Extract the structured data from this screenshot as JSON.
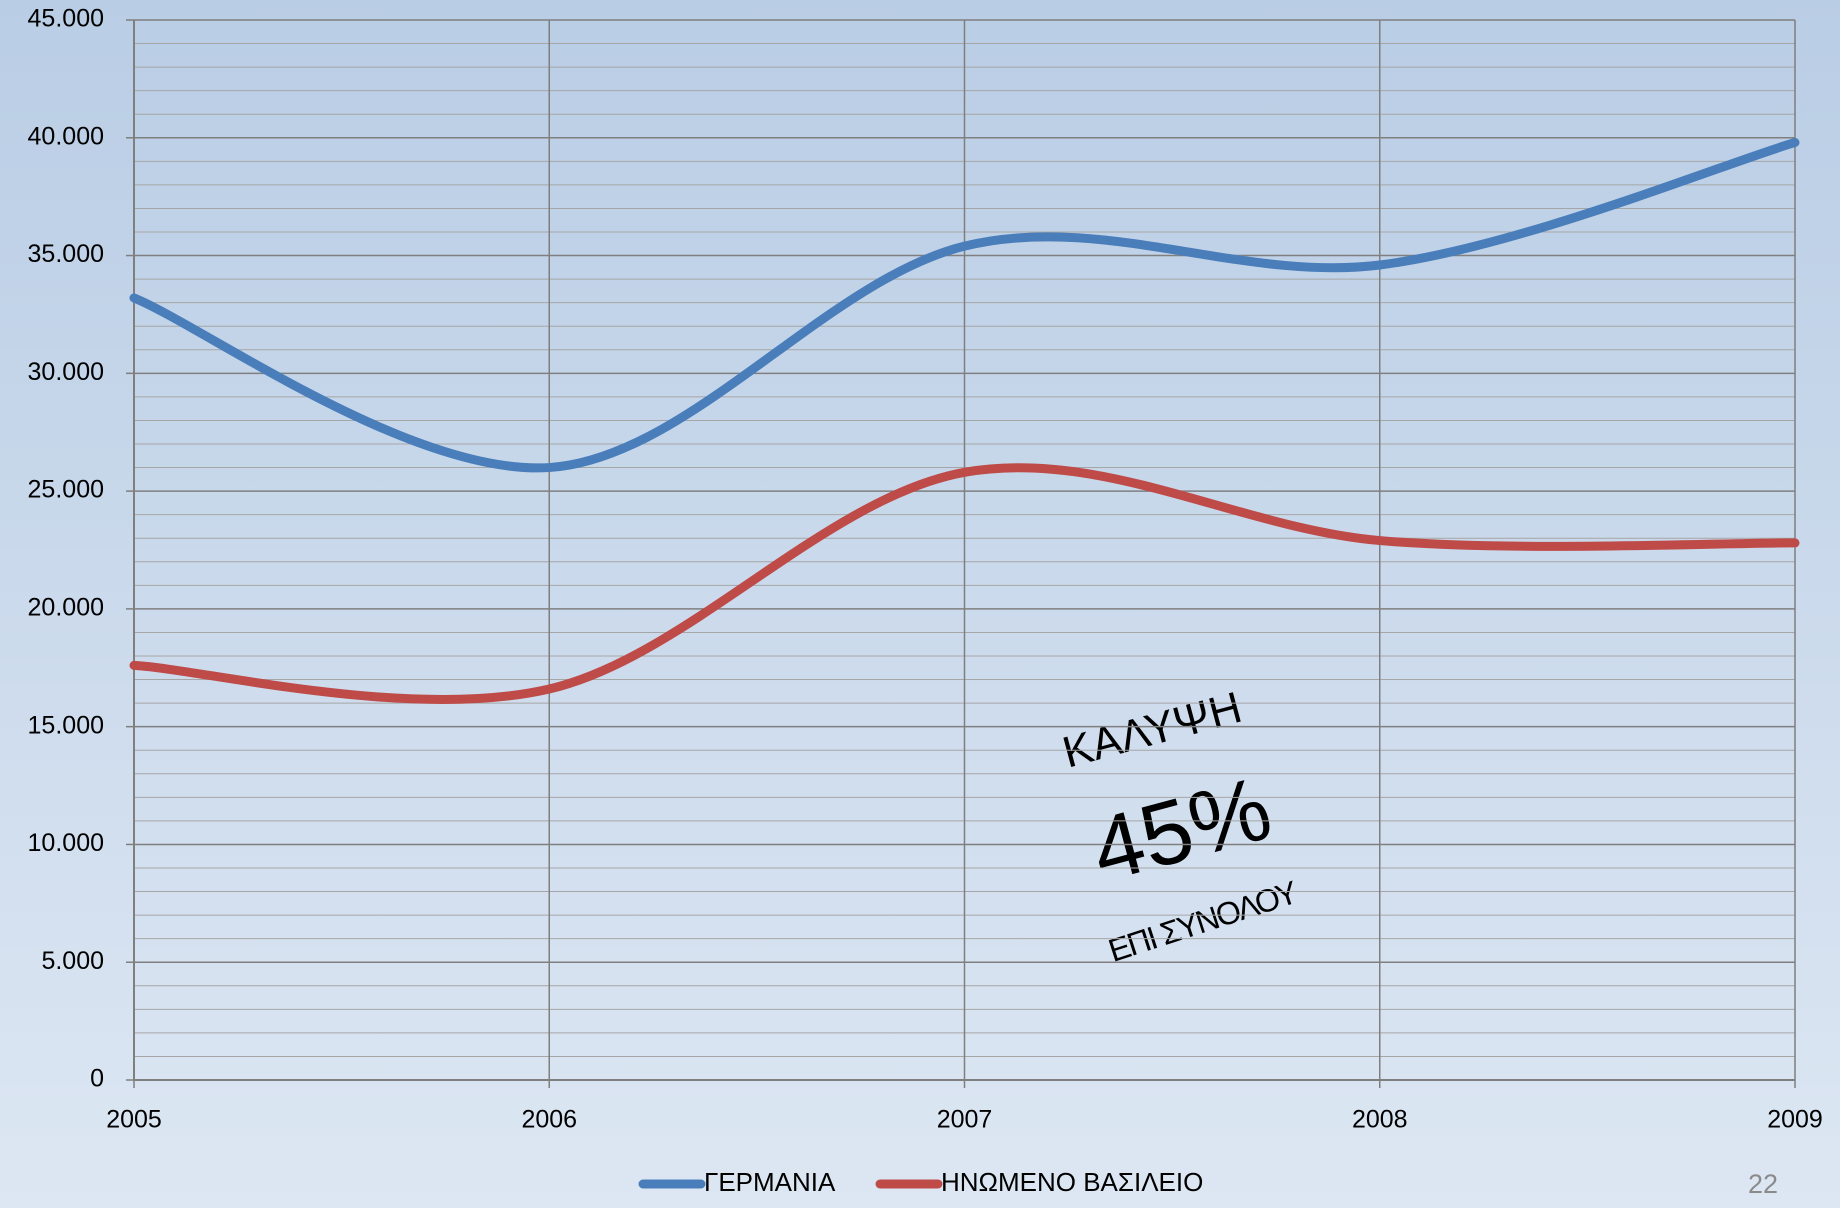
{
  "chart_data": {
    "type": "line",
    "x": [
      2005,
      2006,
      2007,
      2008,
      2009
    ],
    "xlim": [
      2005,
      2009
    ],
    "xticks": [
      2005,
      2006,
      2007,
      2008,
      2009
    ],
    "ylim": [
      0,
      45000
    ],
    "yticks": [
      0,
      {
        "value": 5000,
        "label": "5.000"
      },
      {
        "value": 10000,
        "label": "10.000"
      },
      {
        "value": 15000,
        "label": "15.000"
      },
      {
        "value": 20000,
        "label": "20.000"
      },
      {
        "value": 25000,
        "label": "25.000"
      },
      {
        "value": 30000,
        "label": "30.000"
      },
      {
        "value": 35000,
        "label": "35.000"
      },
      {
        "value": 40000,
        "label": "40.000"
      },
      {
        "value": 45000,
        "label": "45.000"
      }
    ],
    "grid": true,
    "smooth": true,
    "legend": "bottom",
    "series": [
      {
        "name": "ΓΕΡΜΑΝΙΑ",
        "color": "#4a7ebb",
        "values": [
          33200,
          26000,
          35400,
          34600,
          39800
        ]
      },
      {
        "name": "ΗΝΩΜΕΝΟ ΒΑΣΙΛΕΙΟ",
        "color": "#be4b48",
        "values": [
          17600,
          16600,
          25800,
          22900,
          22800
        ]
      }
    ],
    "annotations": [
      "ΚΑΛΥΨΗ",
      "45%",
      "ΕΠΙ ΣΥΝΟΛΟΥ"
    ]
  },
  "page_number": "22"
}
